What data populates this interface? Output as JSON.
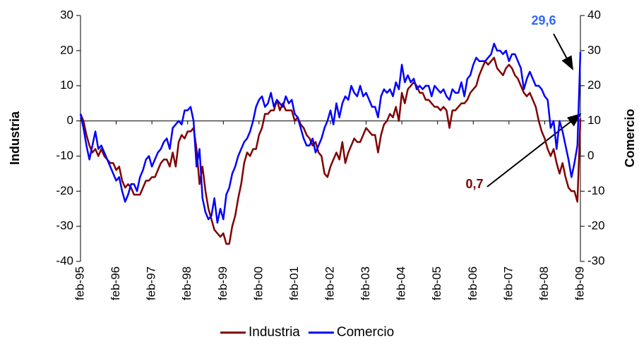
{
  "chart_data": {
    "type": "line",
    "y_label": "Industria",
    "y2_label": "Comercio",
    "categories": [
      "feb-95",
      null,
      null,
      null,
      null,
      null,
      null,
      null,
      null,
      null,
      null,
      null,
      "feb-96",
      null,
      null,
      null,
      null,
      null,
      null,
      null,
      null,
      null,
      null,
      null,
      "feb-97",
      null,
      null,
      null,
      null,
      null,
      null,
      null,
      null,
      null,
      null,
      null,
      "feb-98",
      null,
      null,
      null,
      null,
      null,
      null,
      null,
      null,
      null,
      null,
      null,
      "feb-99",
      null,
      null,
      null,
      null,
      null,
      null,
      null,
      null,
      null,
      null,
      null,
      "feb-00",
      null,
      null,
      null,
      null,
      null,
      null,
      null,
      null,
      null,
      null,
      null,
      "feb-01",
      null,
      null,
      null,
      null,
      null,
      null,
      null,
      null,
      null,
      null,
      null,
      "feb-02",
      null,
      null,
      null,
      null,
      null,
      null,
      null,
      null,
      null,
      null,
      null,
      "feb-03",
      null,
      null,
      null,
      null,
      null,
      null,
      null,
      null,
      null,
      null,
      null,
      "feb-04",
      null,
      null,
      null,
      null,
      null,
      null,
      null,
      null,
      null,
      null,
      null,
      "feb-05",
      null,
      null,
      null,
      null,
      null,
      null,
      null,
      null,
      null,
      null,
      null,
      "feb-06",
      null,
      null,
      null,
      null,
      null,
      null,
      null,
      null,
      null,
      null,
      null,
      "feb-07",
      null,
      null,
      null,
      null,
      null,
      null,
      null,
      null,
      null,
      null,
      null,
      "feb-08",
      null,
      null,
      null,
      null,
      null,
      null,
      null,
      null,
      null,
      null,
      null,
      "feb-09"
    ],
    "series": [
      {
        "name": "Industria",
        "color": "#800000",
        "axis": "y",
        "values": [
          2,
          0,
          -4,
          -7,
          -9,
          -8,
          -10,
          -8,
          -10,
          -11,
          -12,
          -12,
          -14,
          -13,
          -17,
          -19,
          -18,
          -19,
          -21,
          -21,
          -21,
          -19,
          -17,
          -17,
          -16,
          -16,
          -14,
          -12,
          -11,
          -11,
          -13,
          -9,
          -13,
          -6,
          -4,
          -5,
          -3,
          -3,
          -2,
          -8,
          -18,
          -13,
          -20,
          -25,
          -28,
          -31,
          -32,
          -33,
          -32,
          -35,
          -35,
          -30,
          -27,
          -22,
          -18,
          -12,
          -9,
          -10,
          -8,
          -8,
          -4,
          -2,
          2,
          2,
          3,
          3,
          6,
          3,
          5,
          3,
          3,
          3,
          0,
          1,
          -1,
          -2,
          -4,
          -5,
          -7,
          -6,
          -9,
          -10,
          -15,
          -16,
          -13,
          -11,
          -9,
          -11,
          -6,
          -12,
          -9,
          -7,
          -5,
          -6,
          -6,
          -4,
          -2,
          -3,
          -4,
          -4,
          -9,
          -4,
          -1,
          0,
          2,
          1,
          4,
          0,
          8,
          5,
          9,
          10,
          11,
          10,
          8,
          8,
          6,
          6,
          5,
          4,
          4,
          3,
          4,
          3,
          -2,
          3,
          3,
          4,
          5,
          5,
          6,
          8,
          9,
          10,
          13,
          15,
          17,
          16,
          17,
          18,
          15,
          14,
          13,
          15,
          16,
          15,
          13,
          12,
          10,
          8,
          7,
          8,
          6,
          4,
          0,
          -3,
          -5,
          -8,
          -10,
          -8,
          -12,
          -15,
          -12,
          -16,
          -19,
          -20,
          -20,
          -23,
          0.7
        ]
      },
      {
        "name": "Comercio",
        "color": "#0000ff",
        "axis": "y2",
        "values": [
          12,
          8,
          3,
          -1,
          3,
          7,
          2,
          3,
          1,
          -1,
          -3,
          -5,
          -7,
          -6,
          -10,
          -13,
          -11,
          -8,
          -8,
          -10,
          -6,
          -4,
          -1,
          0,
          -3,
          -1,
          1,
          2,
          4,
          5,
          2,
          8,
          9,
          10,
          9,
          13,
          13,
          14,
          10,
          -3,
          2,
          -12,
          -16,
          -18,
          -17,
          -12,
          -19,
          -15,
          -18,
          -11,
          -9,
          -5,
          -3,
          0,
          2,
          4,
          5,
          7,
          10,
          14,
          16,
          17,
          14,
          15,
          18,
          14,
          16,
          15,
          14,
          17,
          15,
          16,
          12,
          11,
          8,
          5,
          3,
          3,
          5,
          1,
          3,
          5,
          8,
          10,
          13,
          9,
          15,
          11,
          15,
          17,
          16,
          20,
          18,
          17,
          20,
          17,
          18,
          16,
          14,
          14,
          11,
          17,
          19,
          18,
          19,
          17,
          21,
          19,
          26,
          21,
          23,
          21,
          22,
          19,
          20,
          19,
          20,
          20,
          17,
          20,
          19,
          18,
          19,
          17,
          16,
          19,
          18,
          18,
          21,
          17,
          22,
          23,
          26,
          28,
          27,
          27,
          27,
          28,
          29,
          32,
          30,
          30,
          29,
          30,
          27,
          29,
          29,
          27,
          25,
          19,
          22,
          24,
          22,
          20,
          20,
          19,
          17,
          16,
          8,
          10,
          2,
          10,
          7,
          3,
          -1,
          -6,
          -2,
          3,
          29.6
        ]
      }
    ],
    "ylim": [
      -40,
      30
    ],
    "yticks": [
      -40,
      -30,
      -20,
      -10,
      0,
      10,
      20,
      30
    ],
    "y2lim": [
      -30,
      40
    ],
    "y2ticks": [
      -30,
      -20,
      -10,
      0,
      10,
      20,
      30,
      40
    ],
    "annotations": [
      {
        "text": "29,6",
        "color": "#3366ff"
      },
      {
        "text": "0,7",
        "color": "#800000"
      }
    ],
    "legend": "bottom"
  }
}
